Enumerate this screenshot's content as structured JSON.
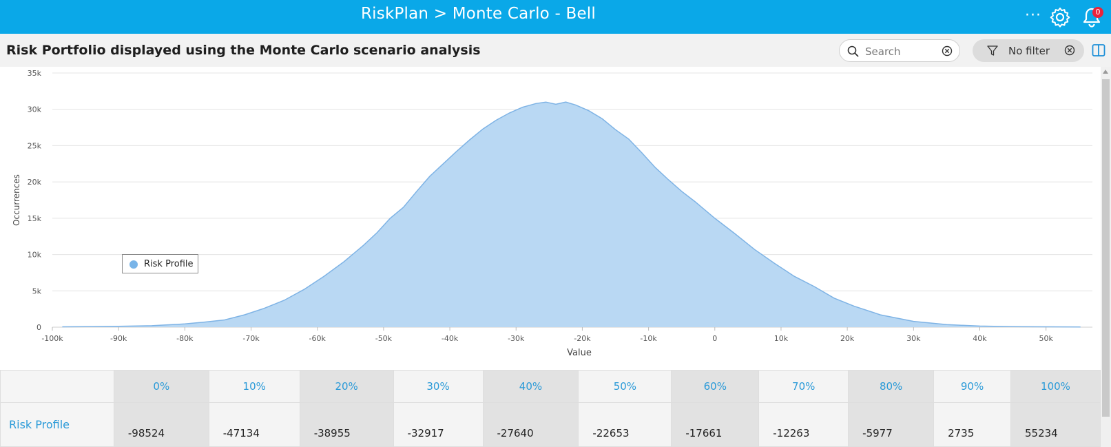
{
  "header": {
    "title": "RiskPlan > Monte Carlo - Bell",
    "more_label": "···",
    "notification_count": "0",
    "icons": [
      "more-icon",
      "gear-icon",
      "bell-icon"
    ]
  },
  "toolbar": {
    "heading": "Risk Portfolio displayed using the Monte Carlo scenario analysis",
    "search_placeholder": "Search",
    "filter_label": "No filter",
    "icons": [
      "search-icon",
      "clear-icon",
      "filter-icon",
      "panel-toggle-icon"
    ]
  },
  "colors": {
    "header_bg": "#0aa8e8",
    "accent": "#2a9ad8",
    "area_fill": "#b9d8f3",
    "area_stroke": "#7eb3e5",
    "badge": "#e8233b"
  },
  "chart_data": {
    "type": "area",
    "xlabel": "Value",
    "ylabel": "Occurrences",
    "xlim": [
      -100000,
      57000
    ],
    "ylim": [
      0,
      35000
    ],
    "x_ticks": [
      -100000,
      -90000,
      -80000,
      -70000,
      -60000,
      -50000,
      -40000,
      -30000,
      -20000,
      -10000,
      0,
      10000,
      20000,
      30000,
      40000,
      50000
    ],
    "x_tick_labels": [
      "-100k",
      "-90k",
      "-80k",
      "-70k",
      "-60k",
      "-50k",
      "-40k",
      "-30k",
      "-20k",
      "-10k",
      "0",
      "10k",
      "20k",
      "30k",
      "40k",
      "50k"
    ],
    "y_ticks": [
      0,
      5000,
      10000,
      15000,
      20000,
      25000,
      30000,
      35000
    ],
    "y_tick_labels": [
      "0",
      "5k",
      "10k",
      "15k",
      "20k",
      "25k",
      "30k",
      "35k"
    ],
    "grid": true,
    "legend": {
      "position": "left",
      "entries": [
        "Risk Profile"
      ]
    },
    "series": [
      {
        "name": "Risk Profile",
        "x": [
          -98500,
          -95000,
          -90000,
          -85000,
          -80000,
          -77000,
          -74000,
          -71000,
          -68000,
          -65000,
          -62000,
          -59000,
          -56000,
          -53000,
          -51000,
          -49000,
          -47000,
          -45000,
          -43000,
          -41000,
          -39000,
          -37000,
          -35000,
          -33000,
          -31000,
          -29000,
          -27000,
          -25500,
          -24000,
          -22500,
          -21000,
          -19000,
          -17000,
          -15000,
          -13000,
          -11000,
          -9000,
          -7000,
          -5000,
          -3000,
          0,
          3000,
          6000,
          9000,
          12000,
          15000,
          18000,
          21000,
          25000,
          30000,
          35000,
          40000,
          45000,
          50000,
          55200
        ],
        "y": [
          50,
          70,
          120,
          200,
          450,
          700,
          1000,
          1700,
          2600,
          3700,
          5200,
          7000,
          9000,
          11300,
          13000,
          15000,
          16500,
          18700,
          20800,
          22500,
          24200,
          25800,
          27300,
          28500,
          29500,
          30300,
          30800,
          31000,
          30700,
          31000,
          30600,
          29800,
          28700,
          27200,
          25900,
          24000,
          22000,
          20300,
          18700,
          17300,
          15000,
          12900,
          10700,
          8800,
          7000,
          5600,
          4000,
          2900,
          1700,
          800,
          350,
          150,
          80,
          50,
          30
        ]
      }
    ]
  },
  "percentiles": {
    "headers": [
      "0%",
      "10%",
      "20%",
      "30%",
      "40%",
      "50%",
      "60%",
      "70%",
      "80%",
      "90%",
      "100%"
    ],
    "row_label": "Risk Profile",
    "values": [
      "-98524",
      "-47134",
      "-38955",
      "-32917",
      "-27640",
      "-22653",
      "-17661",
      "-12263",
      "-5977",
      "2735",
      "55234"
    ]
  }
}
